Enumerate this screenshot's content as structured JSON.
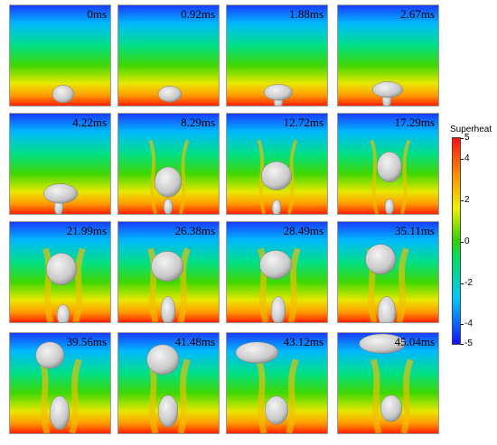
{
  "panels": [
    {
      "time": "0ms"
    },
    {
      "time": "0.92ms"
    },
    {
      "time": "1.88ms"
    },
    {
      "time": "2.67ms"
    },
    {
      "time": "4.22ms"
    },
    {
      "time": "8.29ms"
    },
    {
      "time": "12.72ms"
    },
    {
      "time": "17.29ms"
    },
    {
      "time": "21.99ms"
    },
    {
      "time": "26.38ms"
    },
    {
      "time": "28.49ms"
    },
    {
      "time": "35.11ms"
    },
    {
      "time": "39.56ms"
    },
    {
      "time": "41.48ms"
    },
    {
      "time": "43.12ms"
    },
    {
      "time": "45.04ms"
    }
  ],
  "colorbar": {
    "title": "Superheat",
    "ticks": [
      "5",
      "4",
      "2",
      "0",
      "-2",
      "-4",
      "-5"
    ],
    "colors": [
      "#1010ff",
      "#00c8ff",
      "#00e060",
      "#f0f000",
      "#ff9000",
      "#ff1010"
    ]
  }
}
